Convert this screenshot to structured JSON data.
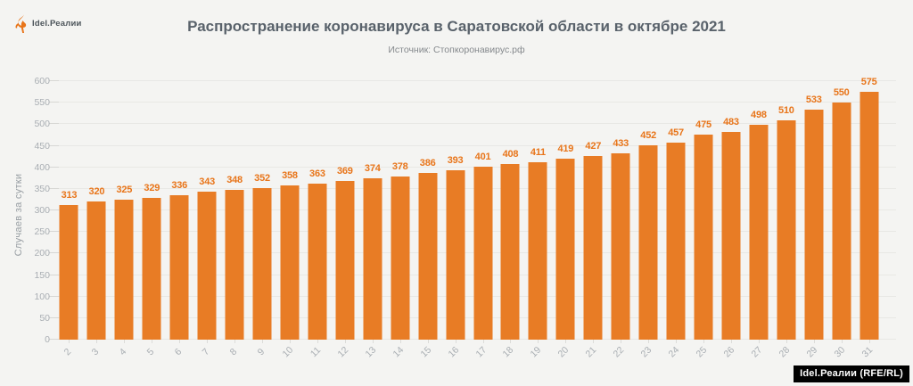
{
  "logo": {
    "text": "Idel.Реалии",
    "icon": "torch-icon"
  },
  "header": {
    "title": "Распространение коронавируса в Саратовской области в октябре 2021",
    "source": "Источник: Стопкоронавирус.рф"
  },
  "footer": {
    "badge": "Idel.Реалии (RFE/RL)"
  },
  "colors": {
    "bar": "#e87c25",
    "value_label": "#e8751a",
    "background": "#f4f4f2",
    "title": "#59626b",
    "axis_text": "#a9aeb3"
  },
  "chart_data": {
    "type": "bar",
    "title": "Распространение коронавируса в Саратовской области в октябре 2021",
    "subtitle": "Источник: Стопкоронавирус.рф",
    "xlabel": "",
    "ylabel": "Случаев за сутки",
    "ylim": [
      0,
      600
    ],
    "ytick_step": 50,
    "grid": "horizontal",
    "legend": "none",
    "categories": [
      "2",
      "3",
      "4",
      "5",
      "6",
      "7",
      "8",
      "9",
      "10",
      "11",
      "12",
      "13",
      "14",
      "15",
      "16",
      "17",
      "18",
      "19",
      "20",
      "21",
      "22",
      "23",
      "24",
      "25",
      "26",
      "27",
      "28",
      "29",
      "30",
      "31"
    ],
    "values": [
      313,
      320,
      325,
      329,
      336,
      343,
      348,
      352,
      358,
      363,
      369,
      374,
      378,
      386,
      393,
      401,
      408,
      411,
      419,
      427,
      433,
      452,
      457,
      475,
      483,
      498,
      510,
      533,
      550,
      575
    ]
  }
}
